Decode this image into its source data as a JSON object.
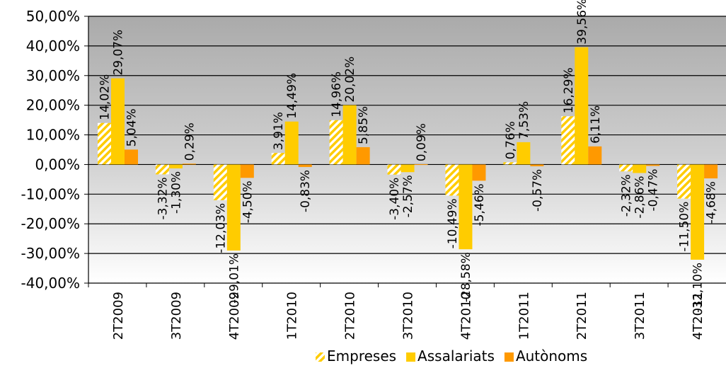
{
  "chart_data": {
    "type": "bar",
    "categories": [
      "2T2009",
      "3T2009",
      "4T2009",
      "1T2010",
      "2T2010",
      "3T2010",
      "4T2010",
      "1T2011",
      "2T2011",
      "3T2011",
      "4T2011"
    ],
    "series": [
      {
        "name": "Empreses",
        "values": [
          14.02,
          -3.32,
          -12.03,
          3.91,
          14.96,
          -3.4,
          -10.49,
          0.76,
          16.29,
          -2.32,
          -11.5
        ],
        "labels": [
          "14,02%",
          "-3,32%",
          "-12,03%",
          "3,91%",
          "14,96%",
          "-3,40%",
          "-10,49%",
          "0,76%",
          "16,29%",
          "-2,32%",
          "-11,50%"
        ],
        "color": "#FFCC00",
        "pattern": "diagonal-hatch"
      },
      {
        "name": "Assalariats",
        "values": [
          29.07,
          -1.3,
          -29.01,
          14.49,
          20.02,
          -2.57,
          -28.58,
          7.53,
          39.56,
          -2.86,
          -32.1
        ],
        "labels": [
          "29,07%",
          "-1,30%",
          "-29,01%",
          "14,49%",
          "20,02%",
          "-2,57%",
          "-28,58%",
          "7,53%",
          "39,56%",
          "-2,86%",
          "-32,10%"
        ],
        "color": "#FFCC00",
        "pattern": "solid"
      },
      {
        "name": "Autònoms",
        "values": [
          5.04,
          0.29,
          -4.5,
          -0.83,
          5.85,
          0.09,
          -5.46,
          -0.57,
          6.11,
          -0.47,
          -4.68
        ],
        "labels": [
          "5,04%",
          "0,29%",
          "-4,50%",
          "-0,83%",
          "5,85%",
          "0,09%",
          "-5,46%",
          "-0,57%",
          "6,11%",
          "-0,47%",
          "-4,68%"
        ],
        "color": "#FF9900",
        "pattern": "solid"
      }
    ],
    "ylim": [
      -40,
      50
    ],
    "yticks": [
      50,
      40,
      30,
      20,
      10,
      0,
      -10,
      -20,
      -30,
      -40
    ],
    "ytick_labels": [
      "50,00%",
      "40,00%",
      "30,00%",
      "20,00%",
      "10,00%",
      "0,00%",
      "-10,00%",
      "-20,00%",
      "-30,00%",
      "-40,00%"
    ],
    "grid": true,
    "legend": "bottom",
    "colors": {
      "plot_top": "#aaaaaa",
      "plot_bottom": "#ffffff",
      "gridline": "#000000"
    }
  }
}
